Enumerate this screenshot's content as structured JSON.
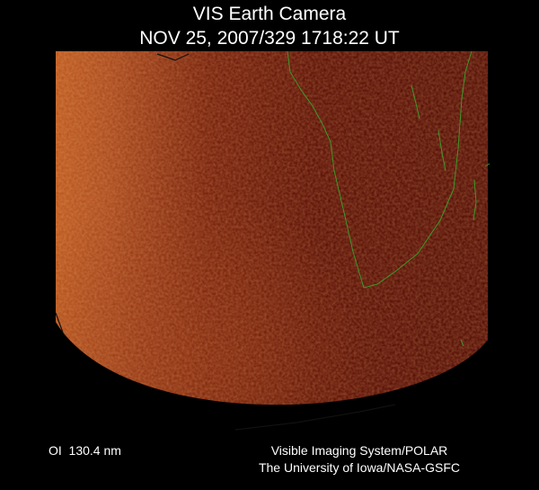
{
  "header": {
    "title": "VIS Earth Camera",
    "timestamp": "NOV 25, 2007/329 1718:22 UT"
  },
  "footer": {
    "filter": "OI  130.4 nm",
    "credit_lines": [
      "Visible Imaging System/POLAR",
      "The University of Iowa/NASA-GSFC"
    ]
  }
}
